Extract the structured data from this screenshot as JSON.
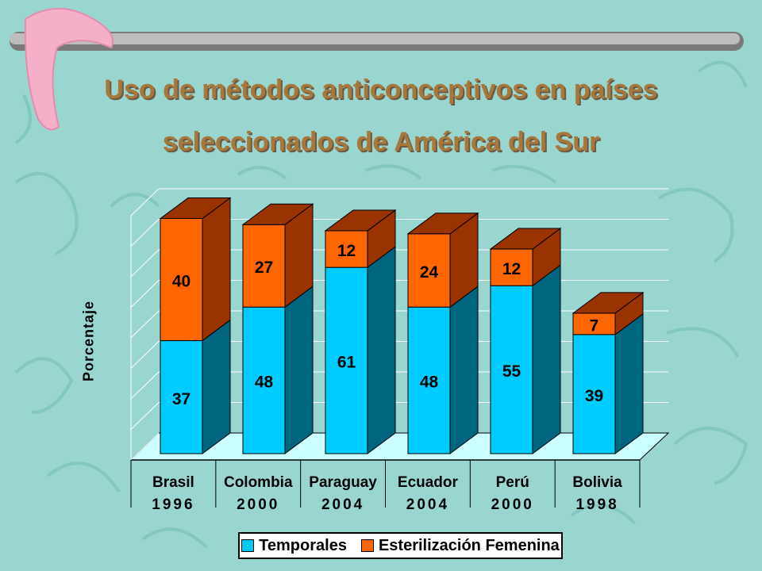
{
  "title_line_1": "Uso de métodos anticonceptivos en países",
  "title_line_2": "seleccionados de América del Sur",
  "colors": {
    "background": "#99d6d0",
    "title": "#a8773a",
    "temporales_front": "#00ccff",
    "temporales_side": "#006680",
    "esterilizacion_front": "#ff6600",
    "esterilizacion_side": "#993300",
    "floor": "#ccffff",
    "bar_decor": "#a0a0a0",
    "boomerang": "#f4b0c8"
  },
  "chart_data": {
    "type": "bar",
    "stacked": true,
    "three_d": true,
    "categories": [
      [
        "Brasil",
        "1996"
      ],
      [
        "Colombia",
        "2000"
      ],
      [
        "Paraguay",
        "2004"
      ],
      [
        "Ecuador",
        "2004"
      ],
      [
        "Perú",
        "2000"
      ],
      [
        "Bolivia",
        "1998"
      ]
    ],
    "series": [
      {
        "name": "Temporales",
        "values": [
          37,
          48,
          61,
          48,
          55,
          39
        ]
      },
      {
        "name": "Esterilización Femenina",
        "values": [
          40,
          27,
          12,
          24,
          12,
          7
        ]
      }
    ],
    "ylabel": "Porcentaje",
    "ylim": [
      0,
      80
    ],
    "grid": true,
    "legend_position": "bottom"
  }
}
